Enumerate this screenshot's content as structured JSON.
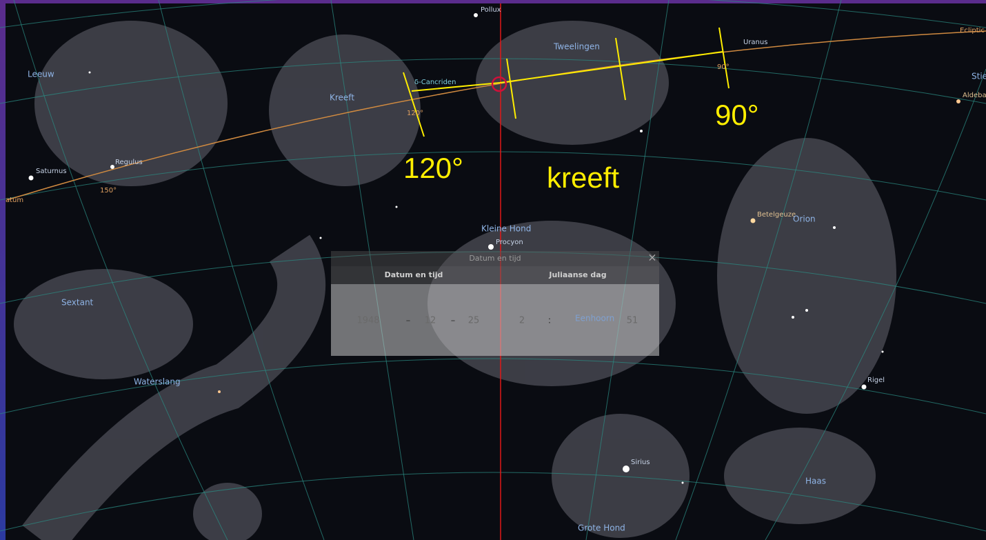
{
  "sky_labels": {
    "pollux": "Pollux",
    "ecliptic": "Ecliptic",
    "tweelingen": "Tweelingen",
    "uranus": "Uranus",
    "leeuw": "Leeuw",
    "cancriden": "δ-Cancriden",
    "kreeft": "Kreeft",
    "deg120_small": "120°",
    "deg90_small": "90°",
    "stier": "Stie",
    "aldebaran": "Aldeba",
    "saturnus": "Saturnus",
    "regulus": "Regulus",
    "deg150": "150°",
    "datum": "atum",
    "betelgeuze": "Betelgeuze",
    "orion": "Orion",
    "kleine_hond": "Kleine Hond",
    "procyon": "Procyon",
    "eenhoorn": "Eenhoorn",
    "sextant": "Sextant",
    "waterslang": "Waterslang",
    "rigel": "Rigel",
    "sirius": "Sirius",
    "haas": "Haas",
    "grote_hond": "Grote Hond"
  },
  "annotations": {
    "deg90": "90°",
    "deg120": "120°",
    "kreeft": "kreeft"
  },
  "dialog": {
    "title": "Datum en tijd",
    "close": "×",
    "tabs": [
      "Datum en tijd",
      "Juliaanse dag"
    ],
    "year": "1948",
    "sep1": "–",
    "month": "12",
    "sep2": "–",
    "day": "25",
    "hour": "2",
    "sep3": ":",
    "second": "51"
  }
}
